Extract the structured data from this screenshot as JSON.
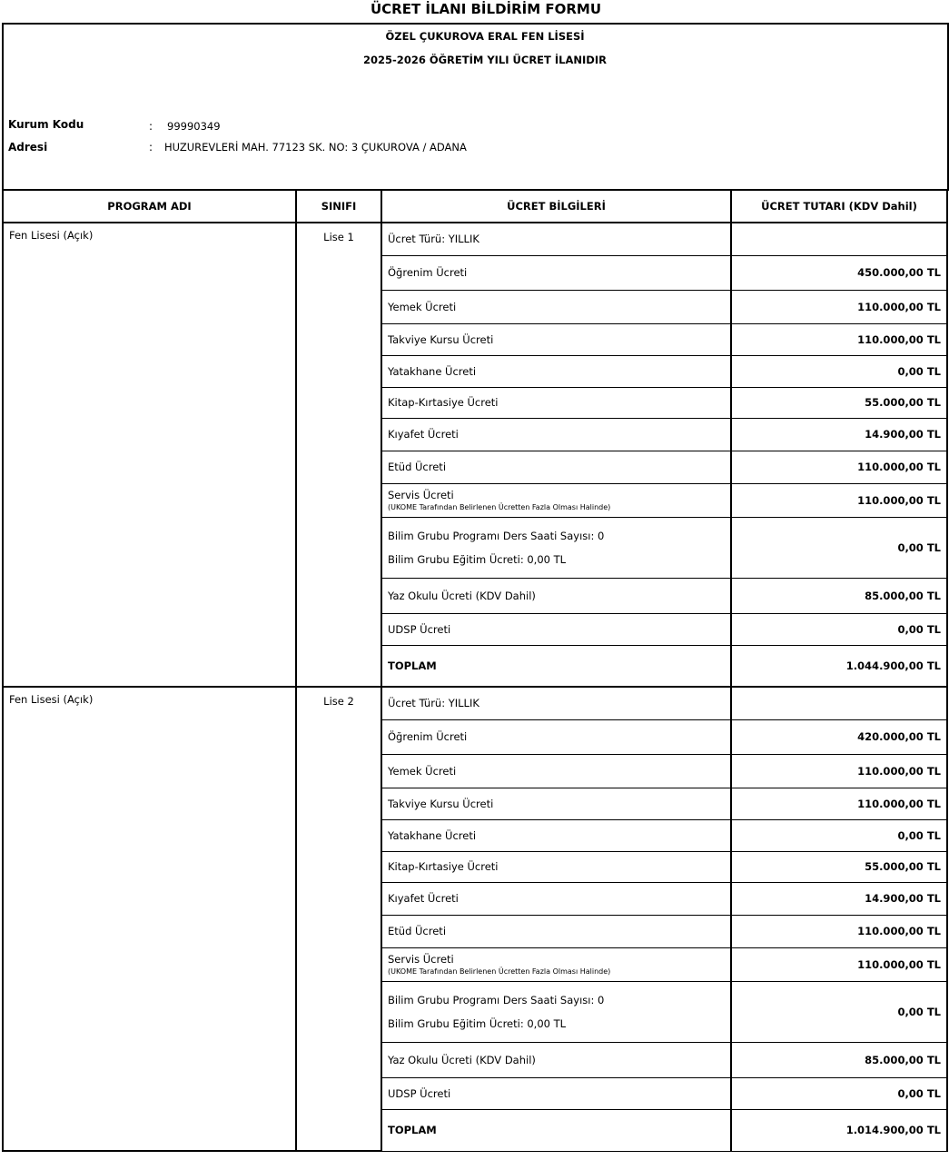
{
  "title": "ÜCRET İLANI BİLDİRİM FORMU",
  "school": "ÖZEL ÇUKUROVA ERAL FEN LİSESİ",
  "year_notice": "2025-2026 ÖĞRETİM YILI ÜCRET İLANIDIR",
  "kurum_kodu": {
    "label": "Kurum Kodu",
    "colon": ":",
    "value": "99990349"
  },
  "adres": {
    "label": "Adresi",
    "colon": ":",
    "value": "HUZUREVLERİ MAH. 77123 SK.  NO: 3 ÇUKUROVA / ADANA"
  },
  "headers": [
    "PROGRAM ADI",
    "SINIFI",
    "ÜCRET BİLGİLERİ",
    "ÜCRET TUTARI (KDV Dahil)"
  ],
  "blocks": [
    {
      "program": "Fen Lisesi (Açık)",
      "class": "Lise 1",
      "rows": [
        {
          "label": "Ücret Türü: YILLIK",
          "amount": ""
        },
        {
          "label": "Öğrenim Ücreti",
          "amount": "450.000,00 TL"
        },
        {
          "label": "Yemek Ücreti",
          "amount": "110.000,00 TL"
        },
        {
          "label": "Takviye Kursu Ücreti",
          "amount": "110.000,00 TL"
        },
        {
          "label": "Yatakhane Ücreti",
          "amount": "0,00 TL"
        },
        {
          "label": "Kitap-Kırtasiye Ücreti",
          "amount": "55.000,00 TL"
        },
        {
          "label": "Kıyafet Ücreti",
          "amount": "14.900,00 TL"
        },
        {
          "label": "Etüd Ücreti",
          "amount": "110.000,00 TL"
        },
        {
          "label": "Servis Ücreti",
          "note": "(UKOME Tarafından Belirlenen Ücretten Fazla Olması Halinde)",
          "amount": "110.000,00 TL"
        },
        {
          "label": "Bilim Grubu Programı Ders Saati Sayısı: 0",
          "label2": "Bilim Grubu Eğitim Ücreti: 0,00 TL",
          "amount": "0,00 TL"
        },
        {
          "label": "Yaz Okulu Ücreti (KDV Dahil)",
          "amount": "85.000,00 TL"
        },
        {
          "label": "UDSP Ücreti",
          "amount": "0,00 TL"
        },
        {
          "label": "TOPLAM",
          "amount": "1.044.900,00 TL",
          "bold": true
        }
      ]
    },
    {
      "program": "Fen Lisesi (Açık)",
      "class": "Lise 2",
      "rows": [
        {
          "label": "Ücret Türü: YILLIK",
          "amount": ""
        },
        {
          "label": "Öğrenim Ücreti",
          "amount": "420.000,00 TL"
        },
        {
          "label": "Yemek Ücreti",
          "amount": "110.000,00 TL"
        },
        {
          "label": "Takviye Kursu Ücreti",
          "amount": "110.000,00 TL"
        },
        {
          "label": "Yatakhane Ücreti",
          "amount": "0,00 TL"
        },
        {
          "label": "Kitap-Kırtasiye Ücreti",
          "amount": "55.000,00 TL"
        },
        {
          "label": "Kıyafet Ücreti",
          "amount": "14.900,00 TL"
        },
        {
          "label": "Etüd Ücreti",
          "amount": "110.000,00 TL"
        },
        {
          "label": "Servis Ücreti",
          "note": "(UKOME Tarafından Belirlenen Ücretten Fazla Olması Halinde)",
          "amount": "110.000,00 TL"
        },
        {
          "label": "Bilim Grubu Programı Ders Saati Sayısı: 0",
          "label2": "Bilim Grubu Eğitim Ücreti: 0,00 TL",
          "amount": "0,00 TL"
        },
        {
          "label": "Yaz Okulu Ücreti (KDV Dahil)",
          "amount": "85.000,00 TL"
        },
        {
          "label": "UDSP Ücreti",
          "amount": "0,00 TL"
        },
        {
          "label": "TOPLAM",
          "amount": "1.014.900,00 TL",
          "bold": true
        }
      ]
    }
  ]
}
